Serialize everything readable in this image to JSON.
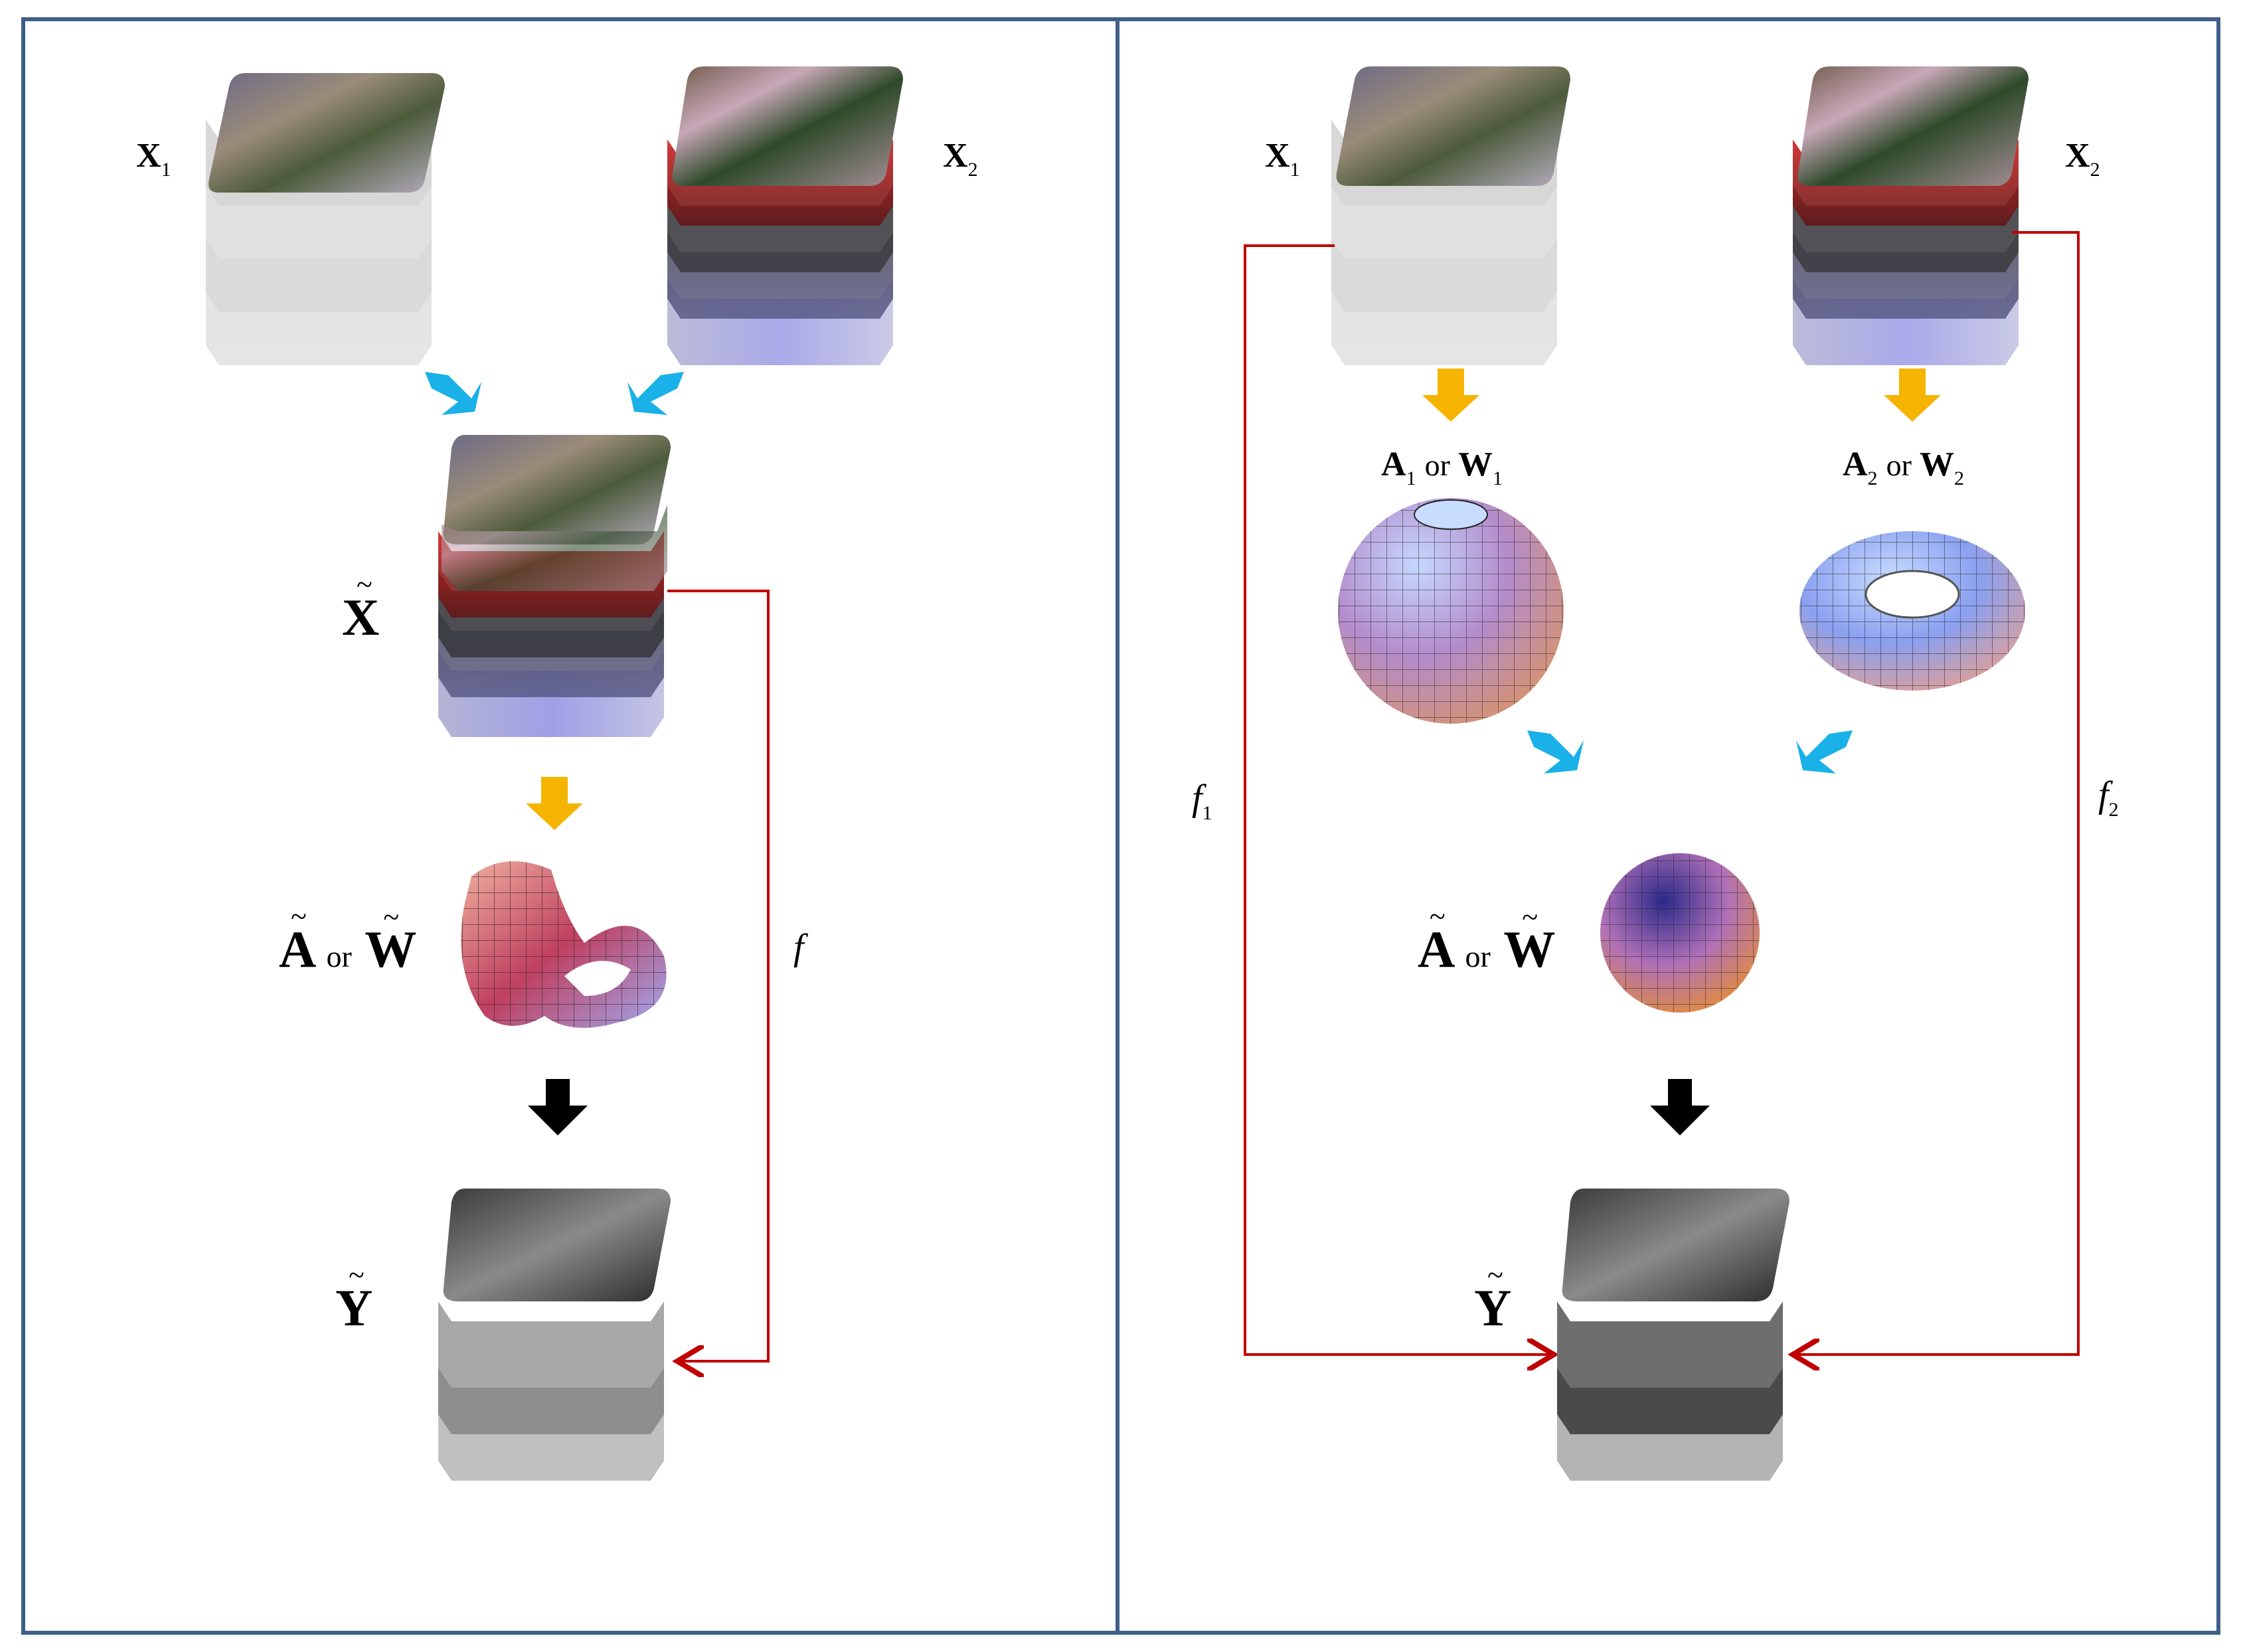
{
  "left_panel": {
    "x1_label": {
      "sym": "X",
      "sub": "1"
    },
    "x2_label": {
      "sym": "X",
      "sub": "2"
    },
    "x_tilde_label": "X",
    "a_or_w": {
      "a": "A",
      "or": "or",
      "w": "W"
    },
    "y_tilde_label": "Y",
    "mapping_label": "f"
  },
  "right_panel": {
    "x1_label": {
      "sym": "X",
      "sub": "1"
    },
    "x2_label": {
      "sym": "X",
      "sub": "2"
    },
    "a1_or_w1": {
      "a": "A",
      "a_sub": "1",
      "or": "or",
      "w": "W",
      "w_sub": "1"
    },
    "a2_or_w2": {
      "a": "A",
      "a_sub": "2",
      "or": "or",
      "w": "W",
      "w_sub": "2"
    },
    "a_or_w": {
      "a": "A",
      "or": "or",
      "w": "W"
    },
    "y_tilde_label": "Y",
    "mapping_label_1": {
      "sym": "f",
      "sub": "1"
    },
    "mapping_label_2": {
      "sym": "f",
      "sub": "2"
    }
  },
  "colors": {
    "frame": "#3f5f8a",
    "blue_arrow": "#1ab0e8",
    "yellow_arrow": "#f5b400",
    "black_arrow": "#000000",
    "red_line": "#c00000"
  },
  "icons": [
    "image-stack-icon",
    "manifold-surface-icon",
    "sphere-icon",
    "torus-icon",
    "arrow-icon"
  ]
}
